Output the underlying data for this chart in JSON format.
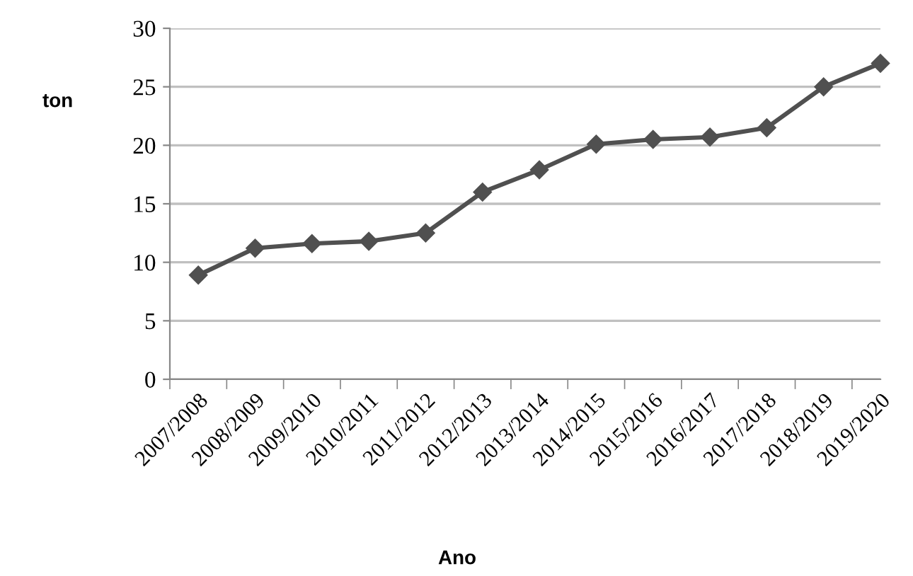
{
  "chart_data": {
    "type": "line",
    "ylabel": "ton",
    "xlabel": "Ano",
    "categories": [
      "2007/2008",
      "2008/2009",
      "2009/2010",
      "2010/2011",
      "2011/2012",
      "2012/2013",
      "2013/2014",
      "2014/2015",
      "2015/2016",
      "2016/2017",
      "2017/2018",
      "2018/2019",
      "2019/2020"
    ],
    "series": [
      {
        "color": "#505050",
        "values": [
          8.9,
          11.2,
          11.6,
          11.8,
          12.5,
          16,
          17.9,
          20.1,
          20.5,
          20.7,
          21.5,
          25,
          27
        ]
      }
    ],
    "ylim": [
      0,
      30
    ],
    "yticks": [
      0,
      5,
      10,
      15,
      20,
      25,
      30
    ],
    "grid": "y",
    "marker": "diamond",
    "line_style": "solid",
    "legend": false
  }
}
